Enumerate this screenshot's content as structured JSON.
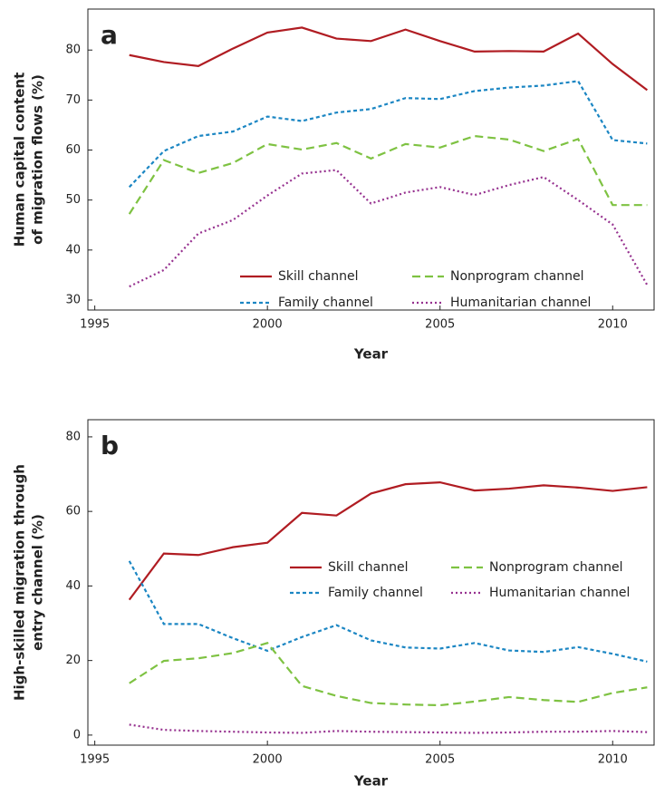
{
  "chart_data": [
    {
      "type": "line",
      "panel": "a",
      "x_label": "Year",
      "y_label": [
        "Human capital content",
        "of migration flows (%)"
      ],
      "x": [
        1996,
        1997,
        1998,
        1999,
        2000,
        2001,
        2002,
        2003,
        2004,
        2005,
        2006,
        2007,
        2008,
        2009,
        2010,
        2011
      ],
      "xlim": [
        1994.8,
        2011.2
      ],
      "xticks": [
        1995,
        2000,
        2005,
        2010
      ],
      "ylim": [
        28,
        88.2
      ],
      "yticks": [
        30,
        40,
        50,
        60,
        70,
        80
      ],
      "series": [
        {
          "name": "Skill channel",
          "color": "#b01c22",
          "dash": "solid",
          "values": [
            79,
            77.6,
            76.8,
            80.3,
            83.5,
            84.5,
            82.3,
            81.8,
            84.1,
            81.8,
            79.7,
            79.8,
            79.7,
            83.3,
            77.2,
            72
          ]
        },
        {
          "name": "Family channel",
          "color": "#1b86c3",
          "dash": "dashed",
          "values": [
            52.6,
            59.8,
            62.8,
            63.7,
            66.7,
            65.8,
            67.5,
            68.2,
            70.4,
            70.2,
            71.8,
            72.5,
            72.9,
            73.8,
            62,
            61.3
          ]
        },
        {
          "name": "Nonprogram channel",
          "color": "#7ec242",
          "dash": "longdash",
          "values": [
            47.2,
            58,
            55.4,
            57.4,
            61.2,
            60.1,
            61.4,
            58.3,
            61.2,
            60.5,
            62.8,
            62.1,
            59.8,
            62.2,
            49,
            49
          ]
        },
        {
          "name": "Humanitarian channel",
          "color": "#96318f",
          "dash": "dotted",
          "values": [
            32.7,
            36,
            43.3,
            46,
            50.9,
            55.3,
            56,
            49.3,
            51.5,
            52.6,
            51,
            53,
            54.6,
            50,
            45.1,
            33
          ]
        }
      ]
    },
    {
      "type": "line",
      "panel": "b",
      "x_label": "Year",
      "y_label": [
        "High-skilled migration through",
        "entry channel (%)"
      ],
      "x": [
        1996,
        1997,
        1998,
        1999,
        2000,
        2001,
        2002,
        2003,
        2004,
        2005,
        2006,
        2007,
        2008,
        2009,
        2010,
        2011
      ],
      "xlim": [
        1994.8,
        2011.2
      ],
      "xticks": [
        1995,
        2000,
        2005,
        2010
      ],
      "ylim": [
        -2.7,
        84.6
      ],
      "yticks": [
        0,
        20,
        40,
        60,
        80
      ],
      "series": [
        {
          "name": "Skill channel",
          "color": "#b01c22",
          "dash": "solid",
          "values": [
            36.3,
            48.7,
            48.3,
            50.4,
            51.6,
            59.6,
            58.9,
            64.8,
            67.3,
            67.8,
            65.6,
            66.1,
            67,
            66.4,
            65.5,
            66.5
          ]
        },
        {
          "name": "Family channel",
          "color": "#1b86c3",
          "dash": "dashed",
          "values": [
            46.7,
            29.8,
            29.8,
            26,
            22.6,
            26.3,
            29.5,
            25.4,
            23.5,
            23.2,
            24.7,
            22.7,
            22.3,
            23.6,
            21.8,
            19.7
          ]
        },
        {
          "name": "Nonprogram channel",
          "color": "#7ec242",
          "dash": "longdash",
          "values": [
            13.9,
            19.9,
            20.6,
            22,
            24.7,
            13.2,
            10.5,
            8.6,
            8.2,
            8,
            9,
            10.2,
            9.4,
            8.9,
            11.3,
            12.8
          ]
        },
        {
          "name": "Humanitarian channel",
          "color": "#96318f",
          "dash": "dotted",
          "values": [
            2.8,
            1.4,
            1.1,
            0.9,
            0.7,
            0.6,
            1.1,
            0.9,
            0.8,
            0.7,
            0.6,
            0.7,
            0.9,
            0.9,
            1.1,
            0.8
          ]
        }
      ]
    }
  ]
}
